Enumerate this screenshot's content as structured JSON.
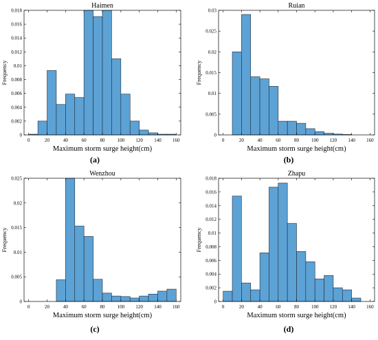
{
  "bar_color": "#5da2d5",
  "bar_edge": "#1f2a33",
  "chart_data": [
    {
      "type": "bar",
      "label": "(a)",
      "title": "Haimen",
      "xlabel": "Maximum storm surge height(cm)",
      "ylabel": "Frequency",
      "bin_width": 10,
      "bin_starts": [
        0,
        10,
        20,
        30,
        40,
        50,
        60,
        70,
        80,
        90,
        100,
        110,
        120,
        130,
        140,
        150
      ],
      "values": [
        0.0001,
        0.002,
        0.0093,
        0.0044,
        0.0059,
        0.0054,
        0.018,
        0.0171,
        0.018,
        0.011,
        0.0059,
        0.002,
        0.0007,
        0.0003,
        0.0001,
        0.0001
      ],
      "xlim": [
        -5,
        165
      ],
      "ylim": [
        0,
        0.018
      ],
      "xticks": [
        0,
        20,
        40,
        60,
        80,
        100,
        120,
        140,
        160
      ],
      "yticks": [
        0,
        0.002,
        0.004,
        0.006,
        0.008,
        0.01,
        0.012,
        0.014,
        0.016,
        0.018
      ],
      "ytick_labels": [
        "0",
        "0.002",
        "0.004",
        "0.006",
        "0.008",
        "0.01",
        "0.012",
        "0.014",
        "0.016",
        "0.018"
      ]
    },
    {
      "type": "bar",
      "label": "(b)",
      "title": "Ruian",
      "xlabel": "Maximum storm surge height(cm)",
      "ylabel": "Frequency",
      "bin_width": 10,
      "bin_starts": [
        10,
        20,
        30,
        40,
        50,
        60,
        70,
        80,
        90,
        100,
        110,
        120,
        130
      ],
      "values": [
        0.02,
        0.029,
        0.014,
        0.0135,
        0.0117,
        0.0033,
        0.0033,
        0.0028,
        0.0015,
        0.0008,
        0.0004,
        0.0002,
        0.0001
      ],
      "xlim": [
        -5,
        165
      ],
      "ylim": [
        0,
        0.03
      ],
      "xticks": [
        0,
        20,
        40,
        60,
        80,
        100,
        120,
        140,
        160
      ],
      "yticks": [
        0,
        0.005,
        0.01,
        0.015,
        0.02,
        0.025,
        0.03
      ],
      "ytick_labels": [
        "0",
        "0.005",
        "0.01",
        "0.015",
        "0.02",
        "0.025",
        "0.03"
      ]
    },
    {
      "type": "bar",
      "label": "(c)",
      "title": "Wenzhou",
      "xlabel": "Maximum storm surge height(cm)",
      "ylabel": "Frequency",
      "bin_width": 10,
      "bin_starts": [
        30,
        40,
        50,
        60,
        70,
        80,
        90,
        100,
        110,
        120,
        130,
        140,
        150
      ],
      "values": [
        0.0044,
        0.025,
        0.0153,
        0.0132,
        0.0045,
        0.0017,
        0.0011,
        0.001,
        0.0007,
        0.0011,
        0.0015,
        0.0021,
        0.0025
      ],
      "xlim": [
        -5,
        165
      ],
      "ylim": [
        0,
        0.025
      ],
      "xticks": [
        0,
        20,
        40,
        60,
        80,
        100,
        120,
        140,
        160
      ],
      "yticks": [
        0,
        0.005,
        0.01,
        0.015,
        0.02,
        0.025
      ],
      "ytick_labels": [
        "0",
        "0.005",
        "0.01",
        "0.015",
        "0.02",
        "0.025"
      ]
    },
    {
      "type": "bar",
      "label": "(d)",
      "title": "Zhapu",
      "xlabel": "Maximum storm surge height(cm)",
      "ylabel": "Frequency",
      "bin_width": 10,
      "bin_starts": [
        0,
        10,
        20,
        30,
        40,
        50,
        60,
        70,
        80,
        90,
        100,
        110,
        120,
        130,
        140
      ],
      "values": [
        0.0015,
        0.0154,
        0.0027,
        0.0017,
        0.0071,
        0.0167,
        0.0173,
        0.0114,
        0.0073,
        0.0058,
        0.0033,
        0.0038,
        0.002,
        0.0017,
        0.0005
      ],
      "xlim": [
        -5,
        165
      ],
      "ylim": [
        0,
        0.018
      ],
      "xticks": [
        0,
        20,
        40,
        60,
        80,
        100,
        120,
        140,
        160
      ],
      "yticks": [
        0,
        0.002,
        0.004,
        0.006,
        0.008,
        0.01,
        0.012,
        0.014,
        0.016,
        0.018
      ],
      "ytick_labels": [
        "0",
        "0.002",
        "0.004",
        "0.006",
        "0.008",
        "0.01",
        "0.012",
        "0.014",
        "0.016",
        "0.018"
      ]
    }
  ]
}
